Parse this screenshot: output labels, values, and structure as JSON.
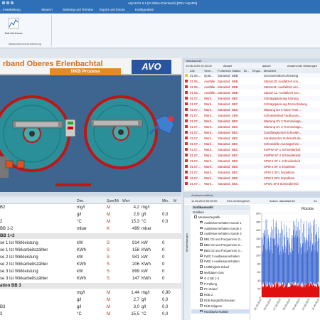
{
  "titlebar": {
    "title": "AQASYS 6.1 [Kt Obes-Erlenbach] [DEV AQAR5]"
  },
  "menu": [
    "...rmanbeitung",
    "Steuern",
    "Startung und Termine",
    "Export und Extras",
    "Konfiguration"
  ],
  "ribbon": {
    "button_label": "Soll-/Ist-Kurve",
    "group_label": "Massnahmenverarbeitung"
  },
  "scada": {
    "title": "rband Oberes Erlenbachtal",
    "subtitle": "NKB Prozess",
    "logo": "AVO"
  },
  "data_table": {
    "columns": {
      "name": "",
      "dim": "Dim.",
      "sum": "Sum/Mi",
      "value": "Wert",
      "unit": "",
      "min": "Min.",
      "max": "M"
    },
    "rows": [
      {
        "name": "B2",
        "dim": "mg/l",
        "sum": "M",
        "value": "4,2",
        "unit": "mg/l",
        "min": "",
        "max": ""
      },
      {
        "name": "",
        "dim": "g/l",
        "sum": "M",
        "value": "2,9",
        "unit": "g/l",
        "min": "0,0",
        "max": ""
      },
      {
        "name": "2",
        "dim": "°C",
        "sum": "M",
        "value": "15,3",
        "unit": "°C",
        "min": "0,0",
        "max": ""
      },
      {
        "name": "BB 1-2",
        "dim": "mbar",
        "sum": "K",
        "value": "499",
        "unit": "mbar",
        "min": "",
        "max": ""
      },
      {
        "name": "BB 1+2",
        "group": true
      },
      {
        "name": "se 1 Ist Wirkleistung",
        "dim": "kW",
        "sum": "S",
        "value": "914",
        "unit": "kW",
        "min": "0",
        "max": ""
      },
      {
        "name": "se 1 Ist Wirkarbeitszähler",
        "dim": "KWh",
        "sum": "S",
        "value": "158",
        "unit": "KWh",
        "min": "0",
        "max": ""
      },
      {
        "name": "se 2 Ist Wirkleistung",
        "dim": "kW",
        "sum": "S",
        "value": "941",
        "unit": "kW",
        "min": "0",
        "max": ""
      },
      {
        "name": "se 2 Ist Wirkarbeitszähler",
        "dim": "KWh",
        "sum": "S",
        "value": "206",
        "unit": "KWh",
        "min": "0",
        "max": ""
      },
      {
        "name": "se 3 Ist Wirkleistung",
        "dim": "kW",
        "sum": "S",
        "value": "899",
        "unit": "kW",
        "min": "0",
        "max": ""
      },
      {
        "name": "se 3 Ist Wirkarbeitszähler",
        "dim": "KWh",
        "sum": "S",
        "value": "147",
        "unit": "KWh",
        "min": "0",
        "max": ""
      },
      {
        "name": "ation BB 3",
        "group": true
      },
      {
        "name": "",
        "dim": "mg/l",
        "sum": "M",
        "value": "1,44",
        "unit": "mg/l",
        "min": "0,90",
        "max": ""
      },
      {
        "name": "",
        "dim": "g/l",
        "sum": "M",
        "value": "2,7",
        "unit": "g/l",
        "min": "0,0",
        "max": ""
      },
      {
        "name": "B3",
        "dim": "g/l",
        "sum": "M",
        "value": "3,0",
        "unit": "g/l",
        "min": "0,0",
        "max": ""
      },
      {
        "name": "3",
        "dim": "°C",
        "sum": "M",
        "value": "15,5",
        "unit": "°C",
        "min": "0,0",
        "max": ""
      }
    ]
  },
  "events": {
    "header": "Meldearchiv",
    "date": "25.06.2019 00:20:00",
    "filter": "Aktuell",
    "btn1": "aktuell",
    "checkbox_label": "Anstehende Meldungen",
    "columns": [
      "Zeit",
      "Verm...",
      "Pr-Bereich",
      "Station",
      "Bl...",
      "Einga...",
      "Meldetext"
    ],
    "rows": [
      {
        "color": "#f5c518",
        "time": "01.06....",
        "state": "Quitt...",
        "area": "Standard",
        "station": "BBB",
        "text": "Grenzwertüberschreitung"
      },
      {
        "color": "#ff2020",
        "time": "01.05....",
        "state": "Ausfälle...",
        "area": "Standard",
        "station": "BBB",
        "text": "Station10: Ausfallzeit von..."
      },
      {
        "color": "#ff2020",
        "time": "01.05....",
        "state": "Ausfälle...",
        "area": "Standard",
        "station": "BBB",
        "text": "Station11: Ausfallzeit von..."
      },
      {
        "color": "#ff2020",
        "time": "01.05....",
        "state": "Ausfälle...",
        "area": "Standard",
        "station": "BBB",
        "text": "Station 11: Ausfallzeit von..."
      },
      {
        "color": "#ff2020",
        "time": "01.07....",
        "state": "Warti...",
        "area": "Standard",
        "station": "BBC",
        "text": "Schrägspannung Störung"
      },
      {
        "color": "#ff2020",
        "time": "01.07....",
        "state": "Warti...",
        "area": "Standard",
        "station": "BBC",
        "text": "Schrägspannung Fernschaltung"
      },
      {
        "color": "#ff2020",
        "time": "01.07....",
        "state": "Warti...",
        "area": "Standard",
        "station": "BBC",
        "text": "Wartung D4 2 Intern Tran..."
      },
      {
        "color": "#ff2020",
        "time": "01.07....",
        "state": "Warti...",
        "area": "Standard",
        "station": "SBH",
        "text": "Schneidenleid Faulbumnu..."
      },
      {
        "color": "#ff2020",
        "time": "01.07....",
        "state": "Warti...",
        "area": "Standard",
        "station": "BBC",
        "text": "Wartung SV 2 Trommelaga..."
      },
      {
        "color": "#ff2020",
        "time": "01.07....",
        "state": "Warti...",
        "area": "Standard",
        "station": "BBC",
        "text": "Wartung SV 3 Trommelaga..."
      },
      {
        "color": "#ff2020",
        "time": "01.07....",
        "state": "Warti...",
        "area": "Standard",
        "station": "BBC",
        "text": "Gandfangtunnel Schneide..."
      },
      {
        "color": "#ff2020",
        "time": "01.07....",
        "state": "Warti...",
        "area": "Standard",
        "station": "BBC",
        "text": "Sandwäscher Rohrkraft die..."
      },
      {
        "color": "#ff2020",
        "time": "01.07....",
        "state": "Warti...",
        "area": "Standard",
        "station": "BBC",
        "text": "Schneidelle Austragschne..."
      },
      {
        "color": "#ff2020",
        "time": "01.07....",
        "state": "Warti...",
        "area": "Standard",
        "station": "BBC",
        "text": "KWPW SF 1 Schneiderleid"
      },
      {
        "color": "#ff2020",
        "time": "01.07....",
        "state": "Warti...",
        "area": "Standard",
        "station": "BBC",
        "text": "KWPW SF 2 Schneiderleid"
      },
      {
        "color": "#ff2020",
        "time": "01.07....",
        "state": "Warti...",
        "area": "Standard",
        "station": "BBC",
        "text": "SPW 2 SF 1 Schneiderleid"
      },
      {
        "color": "#ff2020",
        "time": "01.07....",
        "state": "Warti...",
        "area": "Standard",
        "station": "BBC",
        "text": "SPW 2 SF 3 Inspektion"
      },
      {
        "color": "#ff2020",
        "time": "01.07....",
        "state": "Warti...",
        "area": "Standard",
        "station": "BBC",
        "text": "SPW 2 SF1 Inspektion"
      },
      {
        "color": "#ff2020",
        "time": "01.07....",
        "state": "Warti...",
        "area": "Standard",
        "station": "BBC",
        "text": "SPW 2 SF2 Inspektion"
      },
      {
        "color": "#ff2020",
        "time": "01.07....",
        "state": "Warti...",
        "area": "Standard",
        "station": "BBC",
        "text": "SPW1 SF3 Schneiderleid"
      }
    ]
  },
  "analysis": {
    "header": "Auslaufverhältnis",
    "date": "11.06.2019 00:00:00",
    "period": "Kein Zeitvergleich",
    "auto_label": "Autom. aktualisieren",
    "zoom_label": "Zo",
    "sidebar_tab": "Bearbeitungen",
    "groups_header": "Grafikauswahl",
    "groups_subheader": "Grafiken",
    "groups": [
      "Messwertegrafik",
      "Ausbleserverhalten Sonde 1",
      "Ausbleserverhalten Sonde 2",
      "Ausbleserverhalten Sonde 3",
      "BB1 O2 und Frequenzen G...",
      "BB2 O2 und Frequenzen G...",
      "BB3 O2 und Frequenzen G...",
      "FWD 3 Ausbleserverhalten",
      "FWD 4 Ausbleserverhalten",
      "Leitfähigkeit Zulauf",
      "Meßdaten Gas",
      "O-2 BB 1-3",
      "P-Fällung",
      "PH Zulauf",
      "RÜB 2",
      "RÜB Burghöfischausen",
      "RÜB Klippern",
      "Rückläufverhältnis"
    ]
  },
  "chart_data": {
    "type": "area",
    "title": "Rückla",
    "ylim": [
      0,
      200
    ],
    "yticks": [
      0,
      20,
      40,
      60,
      80,
      100,
      120,
      140,
      160,
      180,
      200
    ],
    "series": [
      {
        "name": "",
        "color": "#2255cc"
      },
      {
        "name": "",
        "color": "#e01010"
      }
    ],
    "x": [
      "05.06.2019",
      "06.06.2019",
      "07.06.2019",
      "08.06.2019",
      "09.06.2019",
      "10.06.2019",
      "11.06.2019"
    ]
  }
}
